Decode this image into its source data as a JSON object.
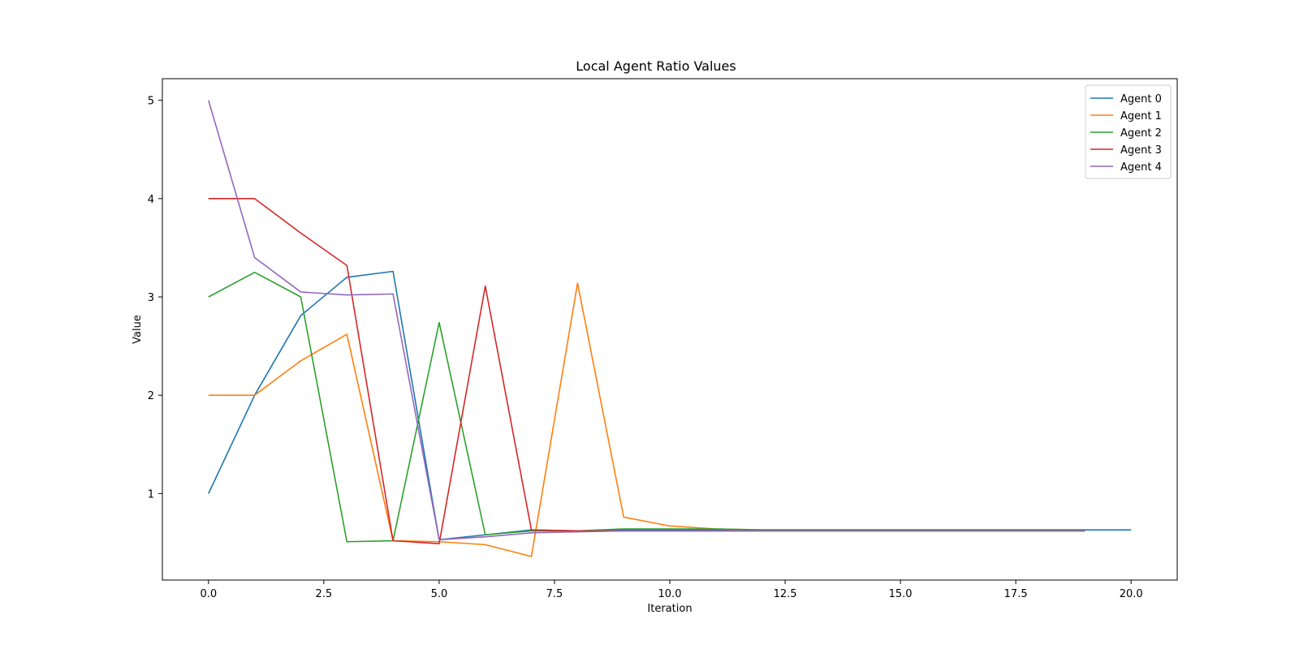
{
  "chart_data": {
    "type": "line",
    "title": "Local Agent Ratio Values",
    "xlabel": "Iteration",
    "ylabel": "Value",
    "xlim": [
      -1.0,
      21.0
    ],
    "ylim": [
      0.12,
      5.22
    ],
    "xticks": [
      0.0,
      2.5,
      5.0,
      7.5,
      10.0,
      12.5,
      15.0,
      17.5,
      20.0
    ],
    "xtick_labels": [
      "0.0",
      "2.5",
      "5.0",
      "7.5",
      "10.0",
      "12.5",
      "15.0",
      "17.5",
      "20.0"
    ],
    "yticks": [
      1,
      2,
      3,
      4,
      5
    ],
    "ytick_labels": [
      "1",
      "2",
      "3",
      "4",
      "5"
    ],
    "grid": false,
    "legend_position": "top-right",
    "series": [
      {
        "name": "Agent 0",
        "color": "#1f77b4",
        "x": [
          0,
          1,
          2,
          3,
          4,
          5,
          6,
          7,
          8,
          9,
          10,
          11,
          12,
          13,
          14,
          15,
          16,
          17,
          18,
          19,
          20
        ],
        "values": [
          1.0,
          2.0,
          2.81,
          3.2,
          3.26,
          0.53,
          0.58,
          0.63,
          0.62,
          0.63,
          0.63,
          0.63,
          0.63,
          0.63,
          0.63,
          0.63,
          0.63,
          0.63,
          0.63,
          0.63,
          0.63
        ]
      },
      {
        "name": "Agent 1",
        "color": "#ff7f0e",
        "x": [
          0,
          1,
          2,
          3,
          4,
          5,
          6,
          7,
          8,
          9,
          10,
          11,
          12,
          13,
          14,
          15,
          16,
          17,
          18,
          19
        ],
        "values": [
          2.0,
          2.0,
          2.35,
          2.62,
          0.52,
          0.51,
          0.48,
          0.36,
          3.14,
          0.76,
          0.67,
          0.64,
          0.63,
          0.63,
          0.63,
          0.63,
          0.63,
          0.63,
          0.63,
          0.63
        ]
      },
      {
        "name": "Agent 2",
        "color": "#2ca02c",
        "x": [
          0,
          1,
          2,
          3,
          4,
          5,
          6,
          7,
          8,
          9,
          10,
          11,
          12,
          13,
          14,
          15,
          16,
          17,
          18,
          19
        ],
        "values": [
          3.0,
          3.25,
          3.0,
          0.51,
          0.52,
          2.74,
          0.58,
          0.62,
          0.62,
          0.64,
          0.64,
          0.64,
          0.63,
          0.63,
          0.63,
          0.63,
          0.63,
          0.63,
          0.63,
          0.63
        ]
      },
      {
        "name": "Agent 3",
        "color": "#d62728",
        "x": [
          0,
          1,
          2,
          3,
          4,
          5,
          6,
          7,
          8,
          9,
          10,
          11,
          12,
          13,
          14,
          15,
          16,
          17,
          18,
          19
        ],
        "values": [
          4.0,
          4.0,
          3.65,
          3.32,
          0.52,
          0.49,
          3.11,
          0.63,
          0.62,
          0.62,
          0.62,
          0.62,
          0.62,
          0.62,
          0.62,
          0.62,
          0.62,
          0.62,
          0.62,
          0.62
        ]
      },
      {
        "name": "Agent 4",
        "color": "#9467bd",
        "x": [
          0,
          1,
          2,
          3,
          4,
          5,
          6,
          7,
          8,
          9,
          10,
          11,
          12,
          13,
          14,
          15,
          16,
          17,
          18,
          19
        ],
        "values": [
          5.0,
          3.4,
          3.05,
          3.02,
          3.03,
          0.53,
          0.56,
          0.6,
          0.61,
          0.62,
          0.62,
          0.62,
          0.62,
          0.62,
          0.62,
          0.62,
          0.62,
          0.62,
          0.62,
          0.62
        ]
      }
    ]
  }
}
